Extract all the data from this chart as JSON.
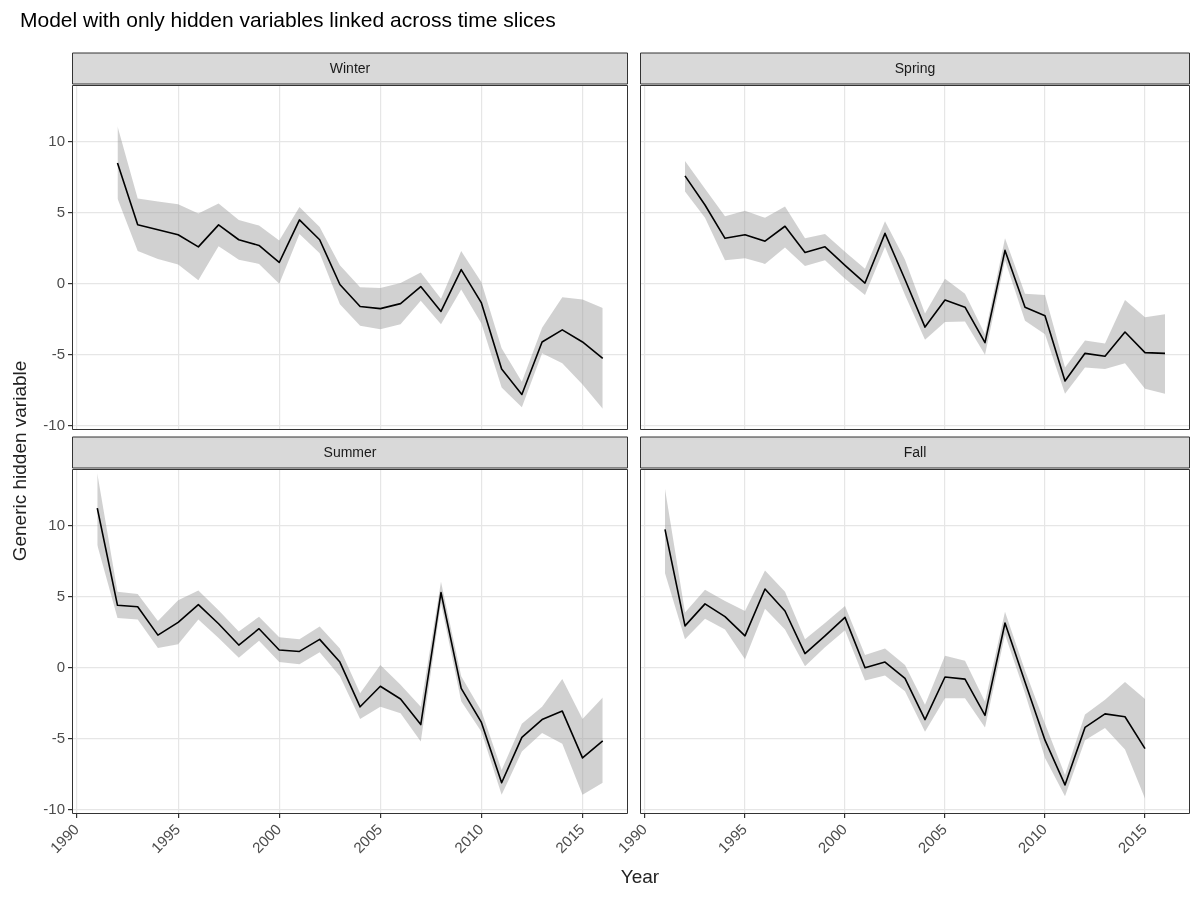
{
  "chart_data": [
    {
      "type": "line",
      "title": "Winter",
      "ylabel": "Generic hidden variable",
      "annotations": [
        "Model with only hidden variables linked across time slices"
      ],
      "xlim": [
        1989.75,
        2017.25
      ],
      "xticks": [
        1990,
        1995,
        2000,
        2005,
        2010,
        2015
      ],
      "ylim": [
        -10.3,
        14
      ],
      "yticks": [
        -10,
        -5,
        0,
        5,
        10
      ],
      "grid": true,
      "tick_labels": "y",
      "line_style": "solid",
      "series": [
        {
          "color": "#000000",
          "x": [
            1992,
            1993,
            1994,
            1995,
            1996,
            1997,
            1998,
            1999,
            2000,
            2001,
            2002,
            2003,
            2004,
            2005,
            2006,
            2007,
            2008,
            2009,
            2010,
            2011,
            2012,
            2013,
            2014,
            2015,
            2016
          ],
          "values": [
            8.5,
            4.15,
            3.8,
            3.45,
            2.6,
            4.15,
            3.1,
            2.7,
            1.5,
            4.5,
            3.1,
            -0.05,
            -1.6,
            -1.75,
            -1.4,
            -0.2,
            -1.95,
            1.0,
            -1.35,
            -6.0,
            -7.8,
            -4.1,
            -3.25,
            -4.1,
            -5.25
          ],
          "upper": [
            11.1,
            6.0,
            5.8,
            5.6,
            4.95,
            5.65,
            4.5,
            4.1,
            3.05,
            5.4,
            4.0,
            1.3,
            -0.25,
            -0.3,
            0.05,
            0.8,
            -1.05,
            2.3,
            0.1,
            -4.55,
            -6.9,
            -3.1,
            -0.95,
            -1.1,
            -1.7
          ],
          "lower": [
            6.0,
            2.3,
            1.75,
            1.35,
            0.25,
            2.65,
            1.7,
            1.4,
            0,
            3.5,
            2.15,
            -1.45,
            -2.95,
            -3.2,
            -2.85,
            -1.2,
            -2.85,
            -0.4,
            -2.8,
            -7.3,
            -8.7,
            -4.9,
            -5.6,
            -7.1,
            -8.8
          ]
        }
      ]
    },
    {
      "type": "line",
      "title": "Spring",
      "xlim": [
        1989.75,
        2017.25
      ],
      "xticks": [
        1990,
        1995,
        2000,
        2005,
        2010,
        2015
      ],
      "ylim": [
        -10.3,
        14
      ],
      "yticks": [
        -10,
        -5,
        0,
        5,
        10
      ],
      "grid": true,
      "tick_labels": false,
      "line_style": "solid",
      "series": [
        {
          "color": "#000000",
          "x": [
            1992,
            1993,
            1994,
            1995,
            1996,
            1997,
            1998,
            1999,
            2000,
            2001,
            2002,
            2003,
            2004,
            2005,
            2006,
            2007,
            2008,
            2009,
            2010,
            2011,
            2012,
            2013,
            2014,
            2015,
            2016
          ],
          "values": [
            7.6,
            5.55,
            3.2,
            3.45,
            3.0,
            4.05,
            2.2,
            2.6,
            1.3,
            0.05,
            3.55,
            0.3,
            -3.05,
            -1.15,
            -1.65,
            -4.15,
            2.35,
            -1.65,
            -2.25,
            -6.85,
            -4.9,
            -5.1,
            -3.4,
            -4.85,
            -4.9
          ],
          "upper": [
            8.65,
            6.7,
            4.75,
            5.15,
            4.65,
            5.45,
            3.2,
            3.5,
            2.25,
            1.05,
            4.4,
            1.7,
            -2.1,
            0.35,
            -0.7,
            -3.55,
            3.2,
            -0.7,
            -0.8,
            -5.9,
            -4.0,
            -4.2,
            -1.15,
            -2.35,
            -2.15
          ],
          "lower": [
            6.5,
            4.65,
            1.65,
            1.8,
            1.4,
            2.55,
            1.25,
            1.65,
            0.35,
            -0.8,
            2.6,
            -0.8,
            -3.95,
            -2.7,
            -2.65,
            -5.0,
            1.65,
            -2.6,
            -3.55,
            -7.75,
            -5.9,
            -6.0,
            -5.6,
            -7.4,
            -7.75
          ]
        }
      ]
    },
    {
      "type": "line",
      "title": "Summer",
      "xlabel": "Year",
      "xlim": [
        1989.75,
        2017.25
      ],
      "xticks": [
        1990,
        1995,
        2000,
        2005,
        2010,
        2015
      ],
      "ylim": [
        -10.3,
        14
      ],
      "yticks": [
        -10,
        -5,
        0,
        5,
        10
      ],
      "grid": true,
      "line_style": "solid",
      "series": [
        {
          "color": "#000000",
          "x": [
            1991,
            1992,
            1993,
            1994,
            1995,
            1996,
            1997,
            1998,
            1999,
            2000,
            2001,
            2002,
            2003,
            2004,
            2005,
            2006,
            2007,
            2008,
            2009,
            2010,
            2011,
            2012,
            2013,
            2014,
            2015,
            2016
          ],
          "values": [
            11.25,
            4.4,
            4.3,
            2.3,
            3.2,
            4.45,
            3.1,
            1.6,
            2.75,
            1.25,
            1.15,
            2.0,
            0.4,
            -2.75,
            -1.3,
            -2.2,
            -4.0,
            5.3,
            -1.45,
            -3.85,
            -8.1,
            -4.9,
            -3.65,
            -3.05,
            -6.35,
            -5.15
          ],
          "upper": [
            13.7,
            5.35,
            5.2,
            3.3,
            4.75,
            5.45,
            4.05,
            2.55,
            3.6,
            2.15,
            2.0,
            2.9,
            1.35,
            -1.8,
            0.2,
            -1.2,
            -2.75,
            6.05,
            -0.6,
            -3.05,
            -7.2,
            -3.95,
            -2.75,
            -0.8,
            -3.6,
            -2.1
          ],
          "lower": [
            8.65,
            3.5,
            3.4,
            1.4,
            1.65,
            3.4,
            2.1,
            0.7,
            1.9,
            0.4,
            0.25,
            1.1,
            -0.6,
            -3.6,
            -2.75,
            -3.2,
            -5.2,
            4.55,
            -2.35,
            -4.5,
            -8.95,
            -5.9,
            -4.6,
            -5.35,
            -8.95,
            -8.1
          ]
        }
      ]
    },
    {
      "type": "line",
      "title": "Fall",
      "xlim": [
        1989.75,
        2017.25
      ],
      "xticks": [
        1990,
        1995,
        2000,
        2005,
        2010,
        2015
      ],
      "ylim": [
        -10.3,
        14
      ],
      "yticks": [
        -10,
        -5,
        0,
        5,
        10
      ],
      "grid": true,
      "tick_labels": "x",
      "line_style": "solid",
      "series": [
        {
          "color": "#000000",
          "x": [
            1991,
            1992,
            1993,
            1994,
            1995,
            1996,
            1997,
            1998,
            1999,
            2000,
            2001,
            2002,
            2003,
            2004,
            2005,
            2006,
            2007,
            2008,
            2009,
            2010,
            2011,
            2012,
            2013,
            2014,
            2015
          ],
          "values": [
            9.75,
            2.95,
            4.5,
            3.6,
            2.25,
            5.55,
            4.0,
            1.0,
            2.25,
            3.55,
            0,
            0.4,
            -0.75,
            -3.65,
            -0.65,
            -0.8,
            -3.35,
            3.15,
            -1.0,
            -5.1,
            -8.25,
            -4.2,
            -3.25,
            -3.45,
            -5.7
          ],
          "upper": [
            12.6,
            3.9,
            5.5,
            4.7,
            4.0,
            6.85,
            5.35,
            2.0,
            3.15,
            4.35,
            0.9,
            1.35,
            0.2,
            -2.6,
            0.85,
            0.5,
            -2.4,
            3.95,
            -0.2,
            -3.95,
            -7.55,
            -3.3,
            -2.25,
            -1.0,
            -2.2
          ],
          "lower": [
            6.65,
            2.0,
            3.45,
            2.7,
            0.6,
            4.15,
            2.7,
            0.1,
            1.45,
            2.65,
            -0.9,
            -0.55,
            -1.65,
            -4.5,
            -2.15,
            -2.15,
            -4.2,
            2.35,
            -1.8,
            -6.35,
            -9.05,
            -5.1,
            -4.25,
            -5.75,
            -9.2
          ]
        }
      ]
    }
  ]
}
